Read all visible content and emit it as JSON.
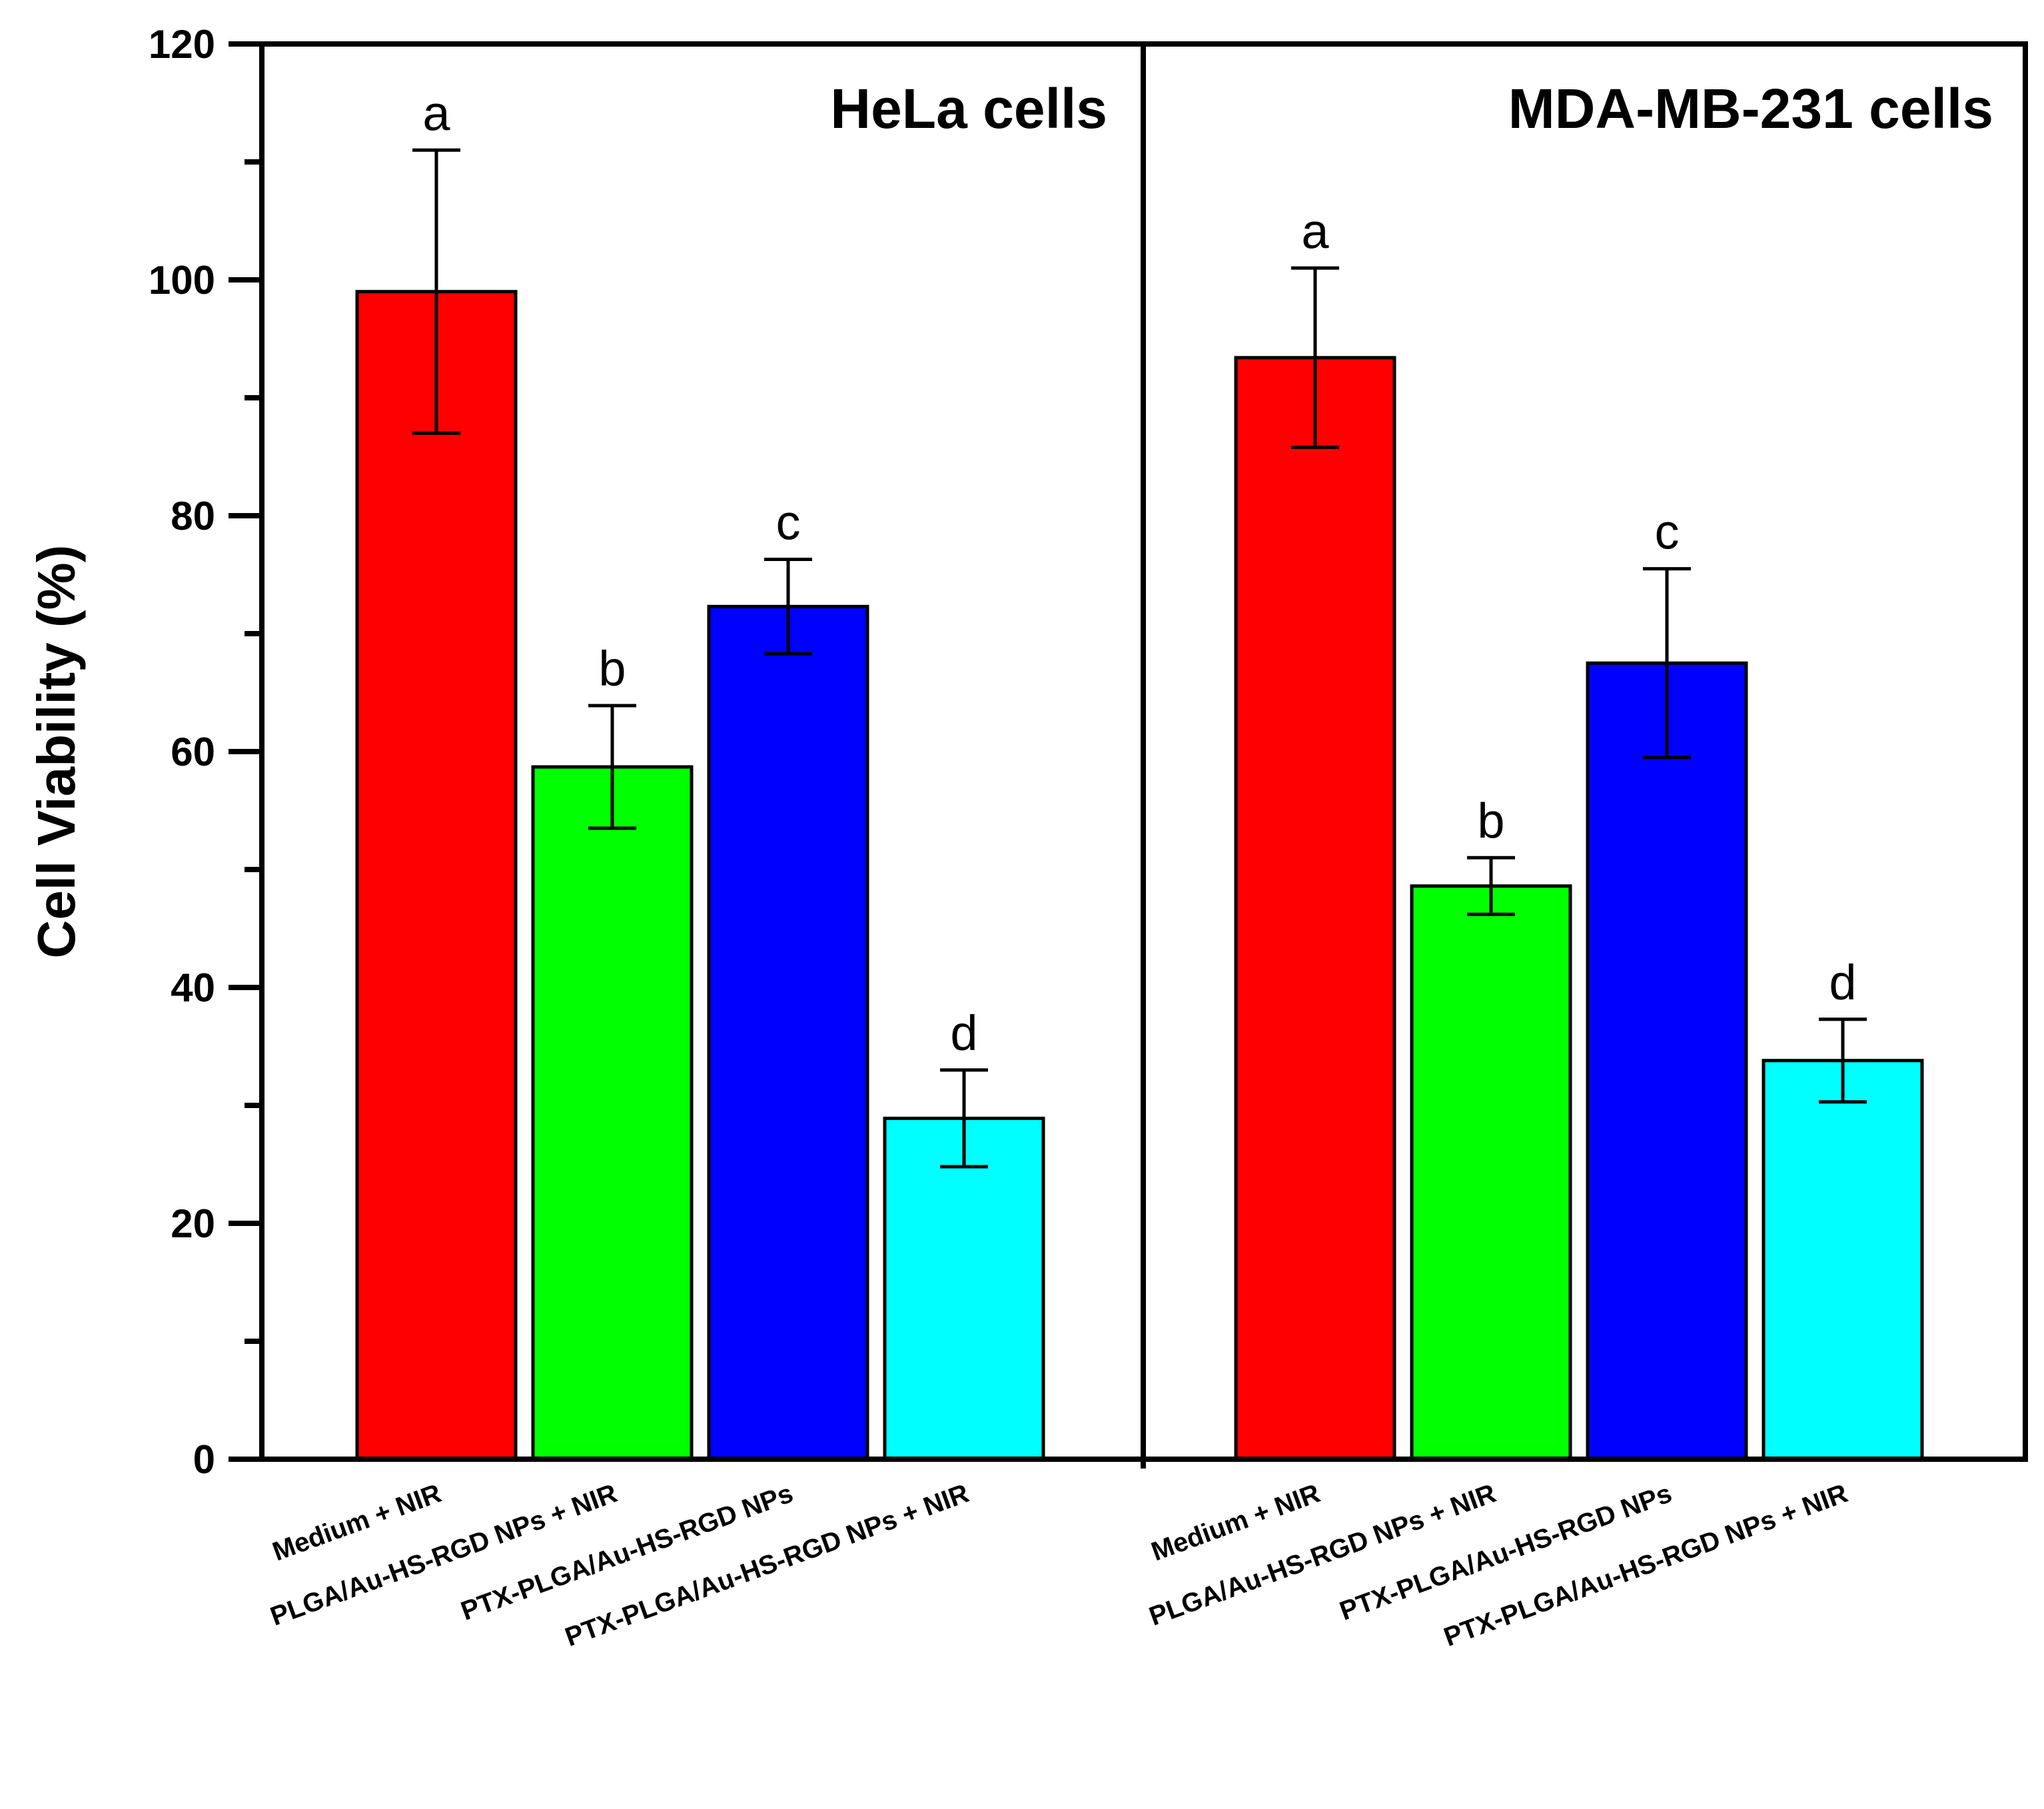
{
  "chart_data": {
    "type": "bar",
    "ylabel": "Cell Viability (%)",
    "ylim": [
      0,
      120
    ],
    "yticks": [
      "0",
      "20",
      "40",
      "60",
      "80",
      "100",
      "120"
    ],
    "colors": [
      "#ff0000",
      "#00ff00",
      "#0000ff",
      "#00ffff"
    ],
    "categories": [
      "Medium + NIR",
      "PLGA/Au-HS-RGD NPs + NIR",
      "PTX-PLGA/Au-HS-RGD NPs",
      "PTX-PLGA/Au-HS-RGD NPs + NIR"
    ],
    "panels": [
      {
        "title": "HeLa cells",
        "values": [
          99,
          58.7,
          72.3,
          28.9
        ],
        "errors": [
          12,
          5.2,
          4.0,
          4.1
        ],
        "letters": [
          "a",
          "b",
          "c",
          "d"
        ]
      },
      {
        "title": "MDA-MB-231 cells",
        "values": [
          93.4,
          48.6,
          67.5,
          33.8
        ],
        "errors": [
          7.6,
          2.4,
          8.0,
          3.5
        ],
        "letters": [
          "a",
          "b",
          "c",
          "d"
        ]
      }
    ]
  }
}
